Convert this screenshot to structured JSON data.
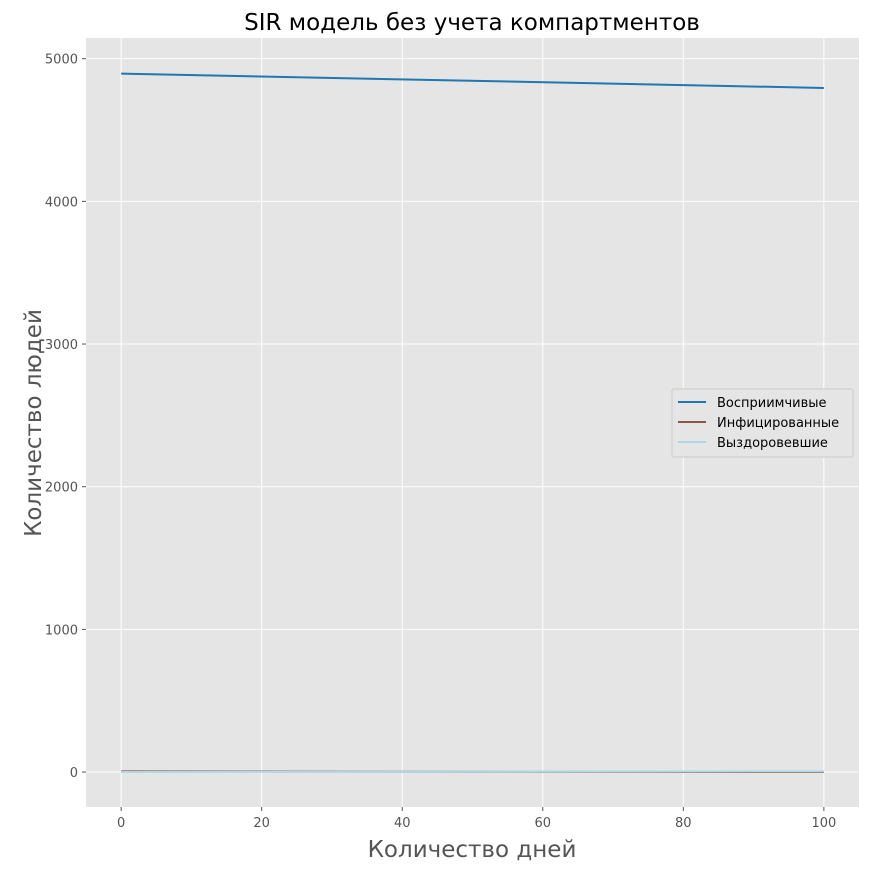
{
  "chart_data": {
    "type": "line",
    "title": "SIR модель без учета компартментов",
    "xlabel": "Количество дней",
    "ylabel": "Количество людей",
    "xlim": [
      -5,
      105
    ],
    "ylim": [
      -245,
      5145
    ],
    "xticks": [
      0,
      20,
      40,
      60,
      80,
      100
    ],
    "yticks": [
      0,
      1000,
      2000,
      3000,
      4000,
      5000
    ],
    "grid": true,
    "legend_position": "right",
    "series": [
      {
        "name": "Восприимчивые",
        "color": "#1f77b4",
        "x": [
          0,
          100
        ],
        "y": [
          4895,
          4795
        ]
      },
      {
        "name": "Инфицированные",
        "color": "#8c564b",
        "x": [
          0,
          100
        ],
        "y": [
          5,
          0
        ]
      },
      {
        "name": "Выздоровевшие",
        "color": "#aed8e6",
        "x": [
          0,
          100
        ],
        "y": [
          0,
          5
        ]
      }
    ]
  }
}
